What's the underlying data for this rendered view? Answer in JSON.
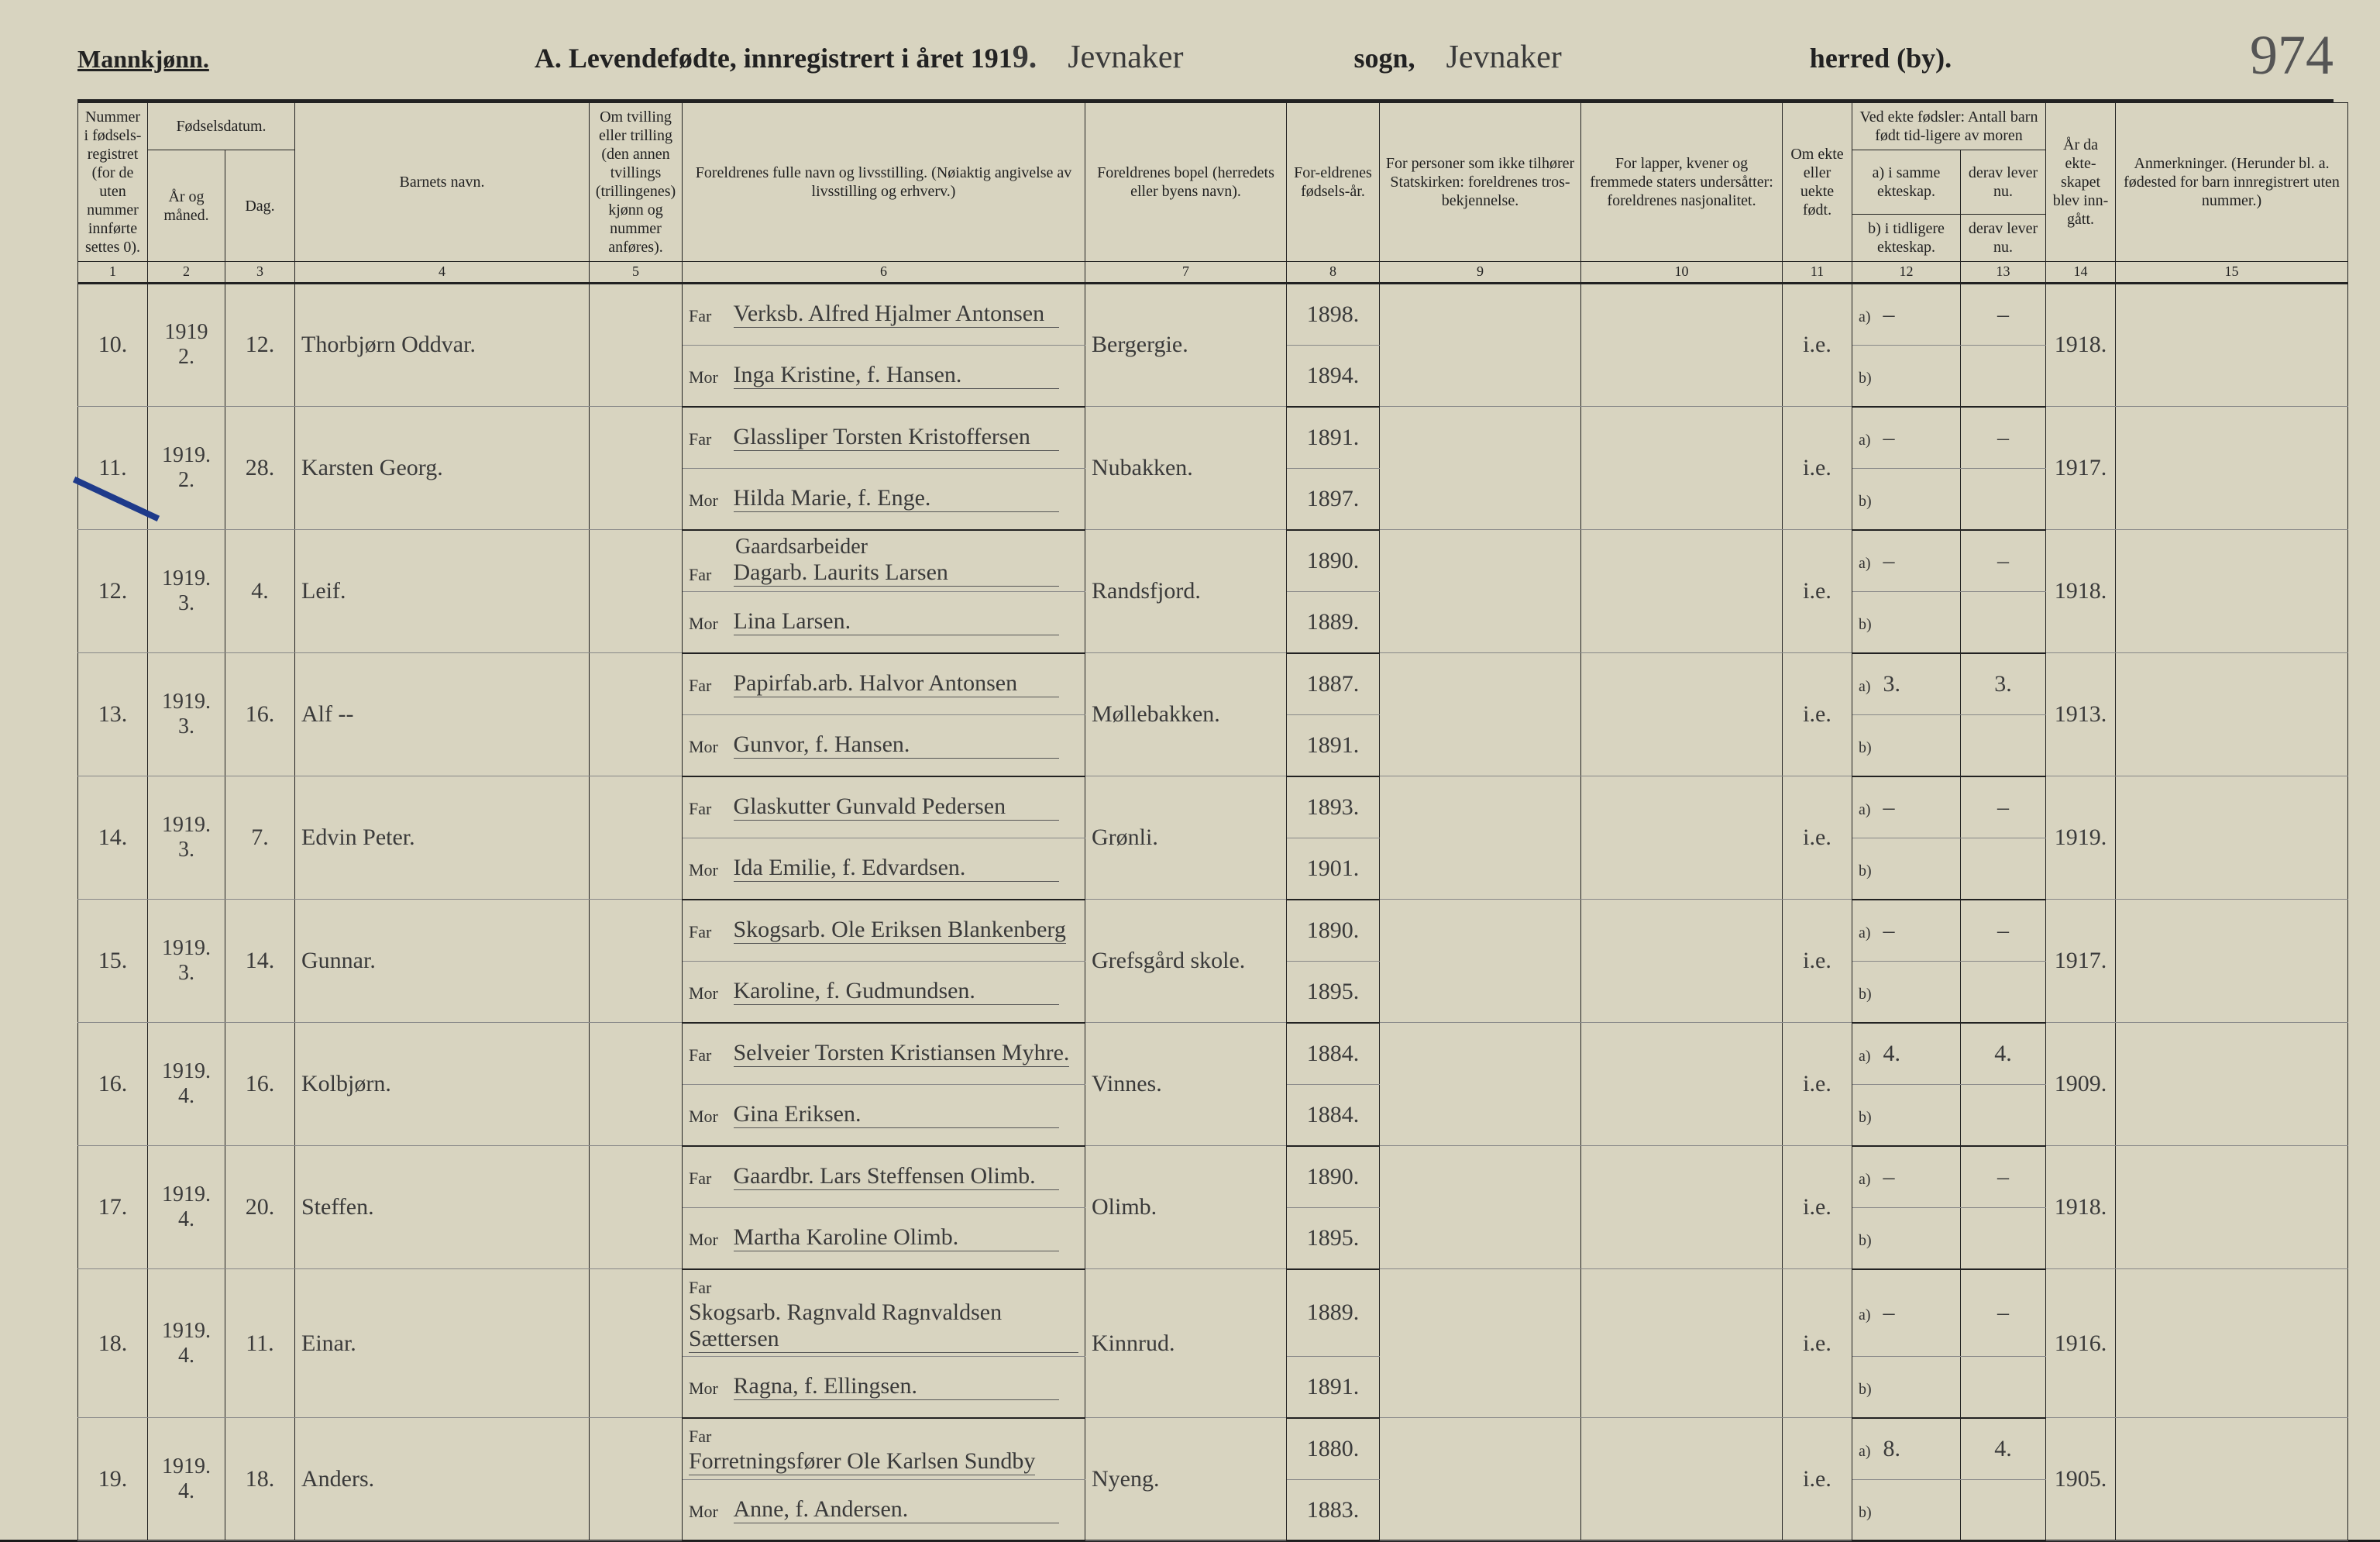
{
  "header": {
    "gender": "Mannkjønn.",
    "title_prefix": "A.  Levendefødte, innregistrert i året 191",
    "year_last_digit": "9.",
    "parish_label": "sogn,",
    "parish_value": "Jevnaker",
    "district_label": "herred (by).",
    "district_value": "Jevnaker",
    "page_number": "974"
  },
  "columns": {
    "c1": "Nummer i fødsels-registret (for de uten nummer innførte settes 0).",
    "c2_group": "Fødselsdatum.",
    "c2": "År og måned.",
    "c3": "Dag.",
    "c4": "Barnets navn.",
    "c5": "Om tvilling eller trilling (den annen tvillings (trillingenes) kjønn og nummer anføres).",
    "c6": "Foreldrenes fulle navn og livsstilling. (Nøiaktig angivelse av livsstilling og erhverv.)",
    "c7": "Foreldrenes bopel (herredets eller byens navn).",
    "c8": "For-eldrenes fødsels-år.",
    "c9": "For personer som ikke tilhører Statskirken: foreldrenes tros-bekjennelse.",
    "c10": "For lapper, kvener og fremmede staters undersåtter: foreldrenes nasjonalitet.",
    "c11": "Om ekte eller uekte født.",
    "c12_13_top": "Ved ekte fødsler: Antall barn født tid-ligere av moren",
    "c12a": "a) i samme ekteskap.",
    "c12b": "b) i tidligere ekteskap.",
    "c13a": "derav lever nu.",
    "c13b": "derav lever nu.",
    "c14": "År da ekte-skapet blev inn-gått.",
    "c15": "Anmerkninger. (Herunder bl. a. fødested for barn innregistrert uten nummer.)",
    "nums": [
      "1",
      "2",
      "3",
      "4",
      "5",
      "6",
      "7",
      "8",
      "9",
      "10",
      "11",
      "12",
      "13",
      "14",
      "15"
    ]
  },
  "labels": {
    "far": "Far",
    "mor": "Mor",
    "a": "a)",
    "b": "b)"
  },
  "colors": {
    "paper": "#d8d4c0",
    "ink": "#222222",
    "pencil": "#555555",
    "blue_mark": "#1e3a8a"
  },
  "rows": [
    {
      "num": "10.",
      "ym_top": "1919",
      "ym": "2.",
      "day": "12.",
      "name": "Thorbjørn Oddvar.",
      "far": "Verksb. Alfred Hjalmer Antonsen",
      "mor": "Inga Kristine, f. Hansen.",
      "res": "Bergergie.",
      "py_far": "1898.",
      "py_mor": "1894.",
      "leg": "i.e.",
      "a12": "–",
      "a13": "–",
      "yr14": "1918."
    },
    {
      "num": "11.",
      "ym_top": "1919.",
      "ym": "2.",
      "day": "28.",
      "name": "Karsten Georg.",
      "far": "Glassliper Torsten Kristoffersen",
      "mor": "Hilda Marie, f. Enge.",
      "res": "Nubakken.",
      "py_far": "1891.",
      "py_mor": "1897.",
      "leg": "i.e.",
      "a12": "–",
      "a13": "–",
      "yr14": "1917."
    },
    {
      "num": "12.",
      "ym_top": "1919.",
      "ym": "3.",
      "day": "4.",
      "name": "Leif.",
      "far_prefix": "Gaardsarbeider",
      "far": "Dagarb. Laurits Larsen",
      "mor": "Lina Larsen.",
      "res": "Randsfjord.",
      "py_far": "1890.",
      "py_mor": "1889.",
      "leg": "i.e.",
      "a12": "–",
      "a13": "–",
      "yr14": "1918."
    },
    {
      "num": "13.",
      "ym_top": "1919.",
      "ym": "3.",
      "day": "16.",
      "name": "Alf --",
      "far": "Papirfab.arb. Halvor Antonsen",
      "mor": "Gunvor, f. Hansen.",
      "res": "Møllebakken.",
      "py_far": "1887.",
      "py_mor": "1891.",
      "leg": "i.e.",
      "a12": "3.",
      "a13": "3.",
      "yr14": "1913."
    },
    {
      "num": "14.",
      "ym_top": "1919.",
      "ym": "3.",
      "day": "7.",
      "name": "Edvin Peter.",
      "far": "Glaskutter Gunvald Pedersen",
      "mor": "Ida Emilie, f. Edvardsen.",
      "res": "Grønli.",
      "py_far": "1893.",
      "py_mor": "1901.",
      "leg": "i.e.",
      "a12": "–",
      "a13": "–",
      "yr14": "1919."
    },
    {
      "num": "15.",
      "ym_top": "1919.",
      "ym": "3.",
      "day": "14.",
      "name": "Gunnar.",
      "far": "Skogsarb. Ole Eriksen Blankenberg",
      "mor": "Karoline, f. Gudmundsen.",
      "res": "Grefsgård skole.",
      "py_far": "1890.",
      "py_mor": "1895.",
      "leg": "i.e.",
      "a12": "–",
      "a13": "–",
      "yr14": "1917."
    },
    {
      "num": "16.",
      "ym_top": "1919.",
      "ym": "4.",
      "day": "16.",
      "name": "Kolbjørn.",
      "far": "Selveier Torsten Kristiansen Myhre.",
      "mor": "Gina Eriksen.",
      "res": "Vinnes.",
      "py_far": "1884.",
      "py_mor": "1884.",
      "leg": "i.e.",
      "a12": "4.",
      "a13": "4.",
      "yr14": "1909."
    },
    {
      "num": "17.",
      "ym_top": "1919.",
      "ym": "4.",
      "day": "20.",
      "name": "Steffen.",
      "far": "Gaardbr. Lars Steffensen Olimb.",
      "mor": "Martha Karoline Olimb.",
      "res": "Olimb.",
      "py_far": "1890.",
      "py_mor": "1895.",
      "leg": "i.e.",
      "a12": "–",
      "a13": "–",
      "yr14": "1918."
    },
    {
      "num": "18.",
      "ym_top": "1919.",
      "ym": "4.",
      "day": "11.",
      "name": "Einar.",
      "far": "Skogsarb. Ragnvald Ragnvaldsen Sættersen",
      "mor": "Ragna, f. Ellingsen.",
      "res": "Kinnrud.",
      "py_far": "1889.",
      "py_mor": "1891.",
      "leg": "i.e.",
      "a12": "–",
      "a13": "–",
      "yr14": "1916."
    },
    {
      "num": "19.",
      "ym_top": "1919.",
      "ym": "4.",
      "day": "18.",
      "name": "Anders.",
      "far": "Forretningsfører Ole Karlsen Sundby",
      "mor": "Anne, f. Andersen.",
      "res": "Nyeng.",
      "py_far": "1880.",
      "py_mor": "1883.",
      "leg": "i.e.",
      "a12": "8.",
      "a13": "4.",
      "yr14": "1905."
    }
  ]
}
